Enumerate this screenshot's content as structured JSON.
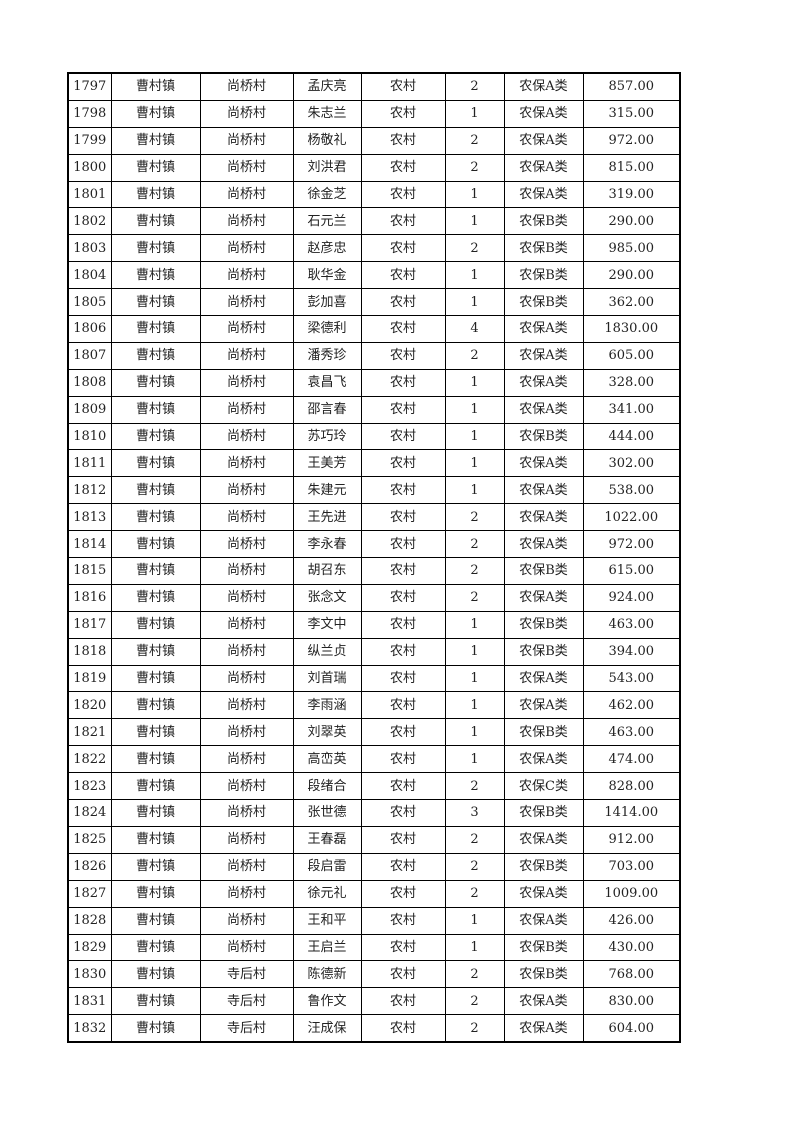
{
  "table": {
    "rows": [
      [
        "1797",
        "曹村镇",
        "尚桥村",
        "孟庆亮",
        "农村",
        "2",
        "农保A类",
        "857.00"
      ],
      [
        "1798",
        "曹村镇",
        "尚桥村",
        "朱志兰",
        "农村",
        "1",
        "农保A类",
        "315.00"
      ],
      [
        "1799",
        "曹村镇",
        "尚桥村",
        "杨敬礼",
        "农村",
        "2",
        "农保A类",
        "972.00"
      ],
      [
        "1800",
        "曹村镇",
        "尚桥村",
        "刘洪君",
        "农村",
        "2",
        "农保A类",
        "815.00"
      ],
      [
        "1801",
        "曹村镇",
        "尚桥村",
        "徐金芝",
        "农村",
        "1",
        "农保A类",
        "319.00"
      ],
      [
        "1802",
        "曹村镇",
        "尚桥村",
        "石元兰",
        "农村",
        "1",
        "农保B类",
        "290.00"
      ],
      [
        "1803",
        "曹村镇",
        "尚桥村",
        "赵彦忠",
        "农村",
        "2",
        "农保B类",
        "985.00"
      ],
      [
        "1804",
        "曹村镇",
        "尚桥村",
        "耿华金",
        "农村",
        "1",
        "农保B类",
        "290.00"
      ],
      [
        "1805",
        "曹村镇",
        "尚桥村",
        "彭加喜",
        "农村",
        "1",
        "农保B类",
        "362.00"
      ],
      [
        "1806",
        "曹村镇",
        "尚桥村",
        "梁德利",
        "农村",
        "4",
        "农保A类",
        "1830.00"
      ],
      [
        "1807",
        "曹村镇",
        "尚桥村",
        "潘秀珍",
        "农村",
        "2",
        "农保A类",
        "605.00"
      ],
      [
        "1808",
        "曹村镇",
        "尚桥村",
        "袁昌飞",
        "农村",
        "1",
        "农保A类",
        "328.00"
      ],
      [
        "1809",
        "曹村镇",
        "尚桥村",
        "邵言春",
        "农村",
        "1",
        "农保A类",
        "341.00"
      ],
      [
        "1810",
        "曹村镇",
        "尚桥村",
        "苏巧玲",
        "农村",
        "1",
        "农保B类",
        "444.00"
      ],
      [
        "1811",
        "曹村镇",
        "尚桥村",
        "王美芳",
        "农村",
        "1",
        "农保A类",
        "302.00"
      ],
      [
        "1812",
        "曹村镇",
        "尚桥村",
        "朱建元",
        "农村",
        "1",
        "农保A类",
        "538.00"
      ],
      [
        "1813",
        "曹村镇",
        "尚桥村",
        "王先进",
        "农村",
        "2",
        "农保A类",
        "1022.00"
      ],
      [
        "1814",
        "曹村镇",
        "尚桥村",
        "李永春",
        "农村",
        "2",
        "农保A类",
        "972.00"
      ],
      [
        "1815",
        "曹村镇",
        "尚桥村",
        "胡召东",
        "农村",
        "2",
        "农保B类",
        "615.00"
      ],
      [
        "1816",
        "曹村镇",
        "尚桥村",
        "张念文",
        "农村",
        "2",
        "农保A类",
        "924.00"
      ],
      [
        "1817",
        "曹村镇",
        "尚桥村",
        "李文中",
        "农村",
        "1",
        "农保B类",
        "463.00"
      ],
      [
        "1818",
        "曹村镇",
        "尚桥村",
        "纵兰贞",
        "农村",
        "1",
        "农保B类",
        "394.00"
      ],
      [
        "1819",
        "曹村镇",
        "尚桥村",
        "刘首瑞",
        "农村",
        "1",
        "农保A类",
        "543.00"
      ],
      [
        "1820",
        "曹村镇",
        "尚桥村",
        "李雨涵",
        "农村",
        "1",
        "农保A类",
        "462.00"
      ],
      [
        "1821",
        "曹村镇",
        "尚桥村",
        "刘翠英",
        "农村",
        "1",
        "农保B类",
        "463.00"
      ],
      [
        "1822",
        "曹村镇",
        "尚桥村",
        "高峦英",
        "农村",
        "1",
        "农保A类",
        "474.00"
      ],
      [
        "1823",
        "曹村镇",
        "尚桥村",
        "段绪合",
        "农村",
        "2",
        "农保C类",
        "828.00"
      ],
      [
        "1824",
        "曹村镇",
        "尚桥村",
        "张世德",
        "农村",
        "3",
        "农保B类",
        "1414.00"
      ],
      [
        "1825",
        "曹村镇",
        "尚桥村",
        "王春磊",
        "农村",
        "2",
        "农保A类",
        "912.00"
      ],
      [
        "1826",
        "曹村镇",
        "尚桥村",
        "段启雷",
        "农村",
        "2",
        "农保B类",
        "703.00"
      ],
      [
        "1827",
        "曹村镇",
        "尚桥村",
        "徐元礼",
        "农村",
        "2",
        "农保A类",
        "1009.00"
      ],
      [
        "1828",
        "曹村镇",
        "尚桥村",
        "王和平",
        "农村",
        "1",
        "农保A类",
        "426.00"
      ],
      [
        "1829",
        "曹村镇",
        "尚桥村",
        "王启兰",
        "农村",
        "1",
        "农保B类",
        "430.00"
      ],
      [
        "1830",
        "曹村镇",
        "寺后村",
        "陈德新",
        "农村",
        "2",
        "农保B类",
        "768.00"
      ],
      [
        "1831",
        "曹村镇",
        "寺后村",
        "鲁作文",
        "农村",
        "2",
        "农保A类",
        "830.00"
      ],
      [
        "1832",
        "曹村镇",
        "寺后村",
        "汪成保",
        "农村",
        "2",
        "农保A类",
        "604.00"
      ]
    ]
  }
}
